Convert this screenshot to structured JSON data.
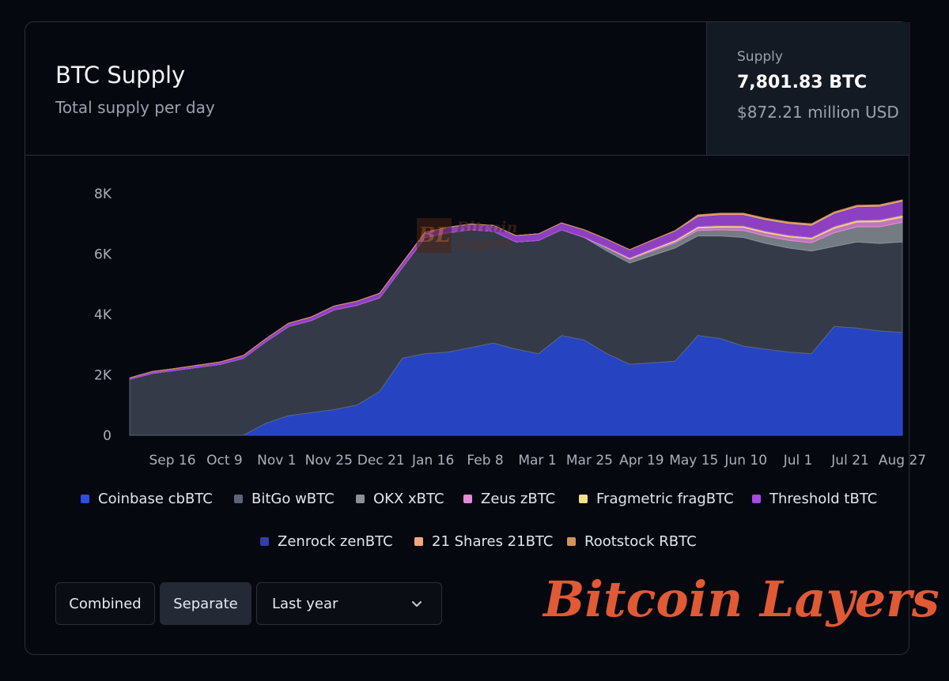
{
  "header": {
    "title": "BTC Supply",
    "subtitle": "Total supply per day"
  },
  "stats": {
    "label": "Supply",
    "value": "7,801.83 BTC",
    "usd": "$872.21 million USD"
  },
  "controls": {
    "combined_label": "Combined",
    "separate_label": "Separate",
    "range_value": "Last year"
  },
  "branding": {
    "logo_text": "Bitcoin Layers",
    "watermark_mark": "BL",
    "watermark_line1": "Bitcoin",
    "watermark_line2": "Layers"
  },
  "chart_data": {
    "type": "area",
    "stacked": true,
    "y_ticks": [
      "0",
      "2K",
      "4K",
      "6K",
      "8K"
    ],
    "ylim": [
      0,
      8000
    ],
    "x_tick_labels": [
      "Sep 16",
      "Oct 9",
      "Nov 1",
      "Nov 25",
      "Dec 21",
      "Jan 16",
      "Feb 8",
      "Mar 1",
      "Mar 25",
      "Apr 19",
      "May 15",
      "Jun 10",
      "Jul 1",
      "Jul 21",
      "Aug 27"
    ],
    "x": [
      "Aug 31",
      "Sep 16",
      "Oct 9",
      "Oct 20",
      "Nov 1",
      "Nov 10",
      "Nov 25",
      "Dec 10",
      "Dec 21",
      "Jan 5",
      "Jan 16",
      "Jan 25",
      "Feb 8",
      "Feb 20",
      "Mar 1",
      "Mar 12",
      "Mar 25",
      "Apr 2",
      "Apr 12",
      "Apr 19",
      "Apr 25",
      "May 5",
      "May 15",
      "May 28",
      "Jun 7",
      "Jun 10",
      "Jun 20",
      "Jul 1",
      "Jul 10",
      "Jul 21",
      "Aug 1",
      "Aug 10",
      "Aug 20",
      "Aug 27",
      "Aug 31"
    ],
    "series": [
      {
        "name": "Coinbase cbBTC",
        "color": "#2d4fe0",
        "values": [
          0,
          0,
          0,
          0,
          0,
          0,
          400,
          650,
          750,
          850,
          1000,
          1450,
          2550,
          2700,
          2750,
          2900,
          3050,
          2850,
          2700,
          3300,
          3150,
          2700,
          2350,
          2400,
          2450,
          3300,
          3200,
          2950,
          2850,
          2750,
          2700,
          3600,
          3550,
          3450,
          3400
        ]
      },
      {
        "name": "BitGo wBTC",
        "color": "#5d6478",
        "values": [
          1850,
          2050,
          2150,
          2250,
          2350,
          2550,
          2700,
          2950,
          3050,
          3300,
          3300,
          3100,
          3000,
          3850,
          3950,
          3900,
          3700,
          3550,
          3750,
          3500,
          3400,
          3400,
          3350,
          3550,
          3750,
          3300,
          3400,
          3600,
          3500,
          3450,
          3400,
          2650,
          2850,
          2900,
          3000
        ]
      },
      {
        "name": "OKX xBTC",
        "color": "#8a8f98",
        "values": [
          0,
          0,
          0,
          0,
          0,
          0,
          0,
          0,
          0,
          0,
          0,
          0,
          0,
          0,
          0,
          0,
          0,
          0,
          0,
          0,
          0,
          100,
          120,
          150,
          170,
          180,
          200,
          230,
          240,
          250,
          270,
          450,
          500,
          550,
          650
        ]
      },
      {
        "name": "Zeus zBTC",
        "color": "#e38ad8",
        "values": [
          0,
          0,
          0,
          0,
          0,
          0,
          0,
          0,
          0,
          0,
          0,
          0,
          0,
          0,
          0,
          0,
          0,
          0,
          0,
          0,
          10,
          20,
          30,
          40,
          50,
          80,
          90,
          100,
          110,
          120,
          130,
          150,
          160,
          170,
          170
        ]
      },
      {
        "name": "Fragmetric fragBTC",
        "color": "#f3e08a",
        "values": [
          0,
          0,
          0,
          0,
          0,
          0,
          0,
          0,
          0,
          0,
          0,
          0,
          0,
          0,
          0,
          0,
          0,
          0,
          0,
          0,
          0,
          10,
          20,
          30,
          40,
          50,
          50,
          50,
          50,
          50,
          50,
          60,
          60,
          60,
          60
        ]
      },
      {
        "name": "Threshold tBTC",
        "color": "#a64ae0",
        "values": [
          50,
          60,
          60,
          70,
          80,
          90,
          100,
          110,
          120,
          130,
          140,
          150,
          160,
          170,
          180,
          190,
          200,
          210,
          220,
          230,
          240,
          260,
          270,
          290,
          300,
          330,
          350,
          360,
          370,
          380,
          390,
          420,
          430,
          440,
          450
        ]
      },
      {
        "name": "Zenrock zenBTC",
        "color": "#3140a6",
        "values": [
          0,
          0,
          0,
          0,
          0,
          0,
          0,
          0,
          0,
          0,
          0,
          0,
          0,
          0,
          0,
          0,
          0,
          0,
          0,
          0,
          0,
          0,
          0,
          0,
          0,
          5,
          10,
          10,
          10,
          10,
          10,
          10,
          10,
          10,
          10
        ]
      },
      {
        "name": "21 Shares 21BTC",
        "color": "#f2a77f",
        "values": [
          0,
          0,
          0,
          0,
          0,
          0,
          0,
          0,
          0,
          0,
          0,
          0,
          0,
          0,
          0,
          0,
          0,
          0,
          0,
          0,
          0,
          0,
          0,
          0,
          10,
          30,
          30,
          30,
          30,
          30,
          30,
          30,
          30,
          30,
          30
        ]
      },
      {
        "name": "Rootstock RBTC",
        "color": "#d4925a",
        "values": [
          0,
          0,
          0,
          0,
          0,
          0,
          0,
          0,
          0,
          0,
          0,
          0,
          0,
          0,
          0,
          0,
          0,
          0,
          0,
          0,
          0,
          0,
          0,
          0,
          0,
          20,
          20,
          20,
          20,
          20,
          20,
          20,
          20,
          20,
          20
        ]
      }
    ],
    "legend_position": "bottom",
    "grid": false
  }
}
